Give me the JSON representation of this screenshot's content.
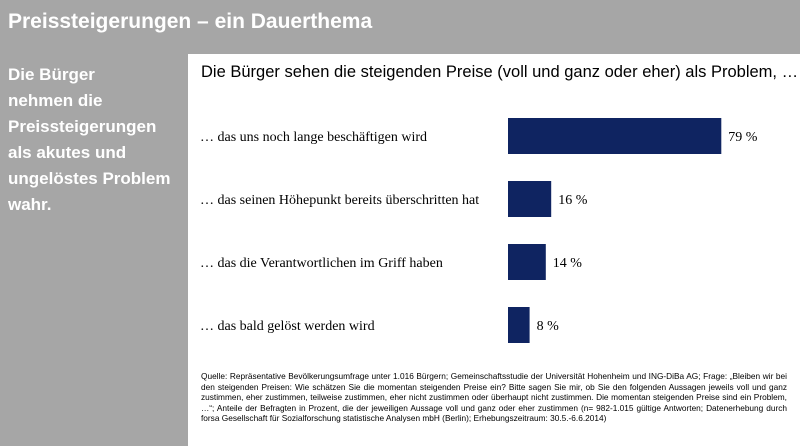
{
  "slide": {
    "title": "Preissteigerungen – ein Dauerthema",
    "side_lines": [
      "Die Bürger",
      "nehmen die",
      "Preissteigerungen",
      "als akutes und",
      "ungelöstes Problem",
      "wahr."
    ]
  },
  "chart_data": {
    "type": "bar",
    "orientation": "horizontal",
    "title": "Die Bürger sehen die steigenden Preise (voll und ganz oder eher) als Problem, …",
    "categories": [
      "… das uns noch lange beschäftigen wird",
      "… das seinen Höhepunkt bereits überschritten hat",
      "… das die Verantwortlichen im Griff haben",
      "… das bald gelöst werden wird"
    ],
    "values": [
      79,
      16,
      14,
      8
    ],
    "value_labels": [
      "79 %",
      "16 %",
      "14 %",
      "8 %"
    ],
    "unit": "%",
    "xlim": [
      0,
      100
    ],
    "bar_color": "#0f2461",
    "grid": false,
    "legend": "none"
  },
  "source_note": "Quelle: Repräsentative Bevölkerungsumfrage unter 1.016 Bürgern; Gemeinschaftsstudie der Universität Hohenheim und ING-DiBa AG; Frage: „Bleiben wir bei den steigenden Preisen: Wie schätzen Sie die momentan steigenden Preise ein? Bitte sagen Sie mir, ob Sie den folgenden Aussagen jeweils voll und ganz zustimmen, eher zustimmen, teilweise zustimmen, eher nicht zustimmen oder überhaupt nicht zustimmen. Die momentan steigenden Preise sind ein Problem, …“; Anteile der Befragten in Prozent, die der jeweiligen Aussage voll und ganz oder eher zustimmen (n= 982-1.015 gültige Antworten; Datenerhebung durch forsa Gesellschaft für Sozialforschung statistische Analysen mbH (Berlin); Erhebungszeitraum: 30.5.-6.6.2014)"
}
